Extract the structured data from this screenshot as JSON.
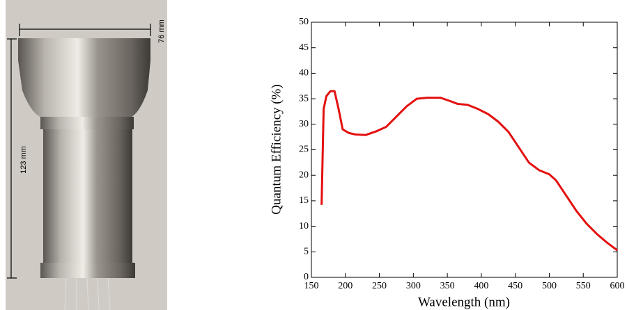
{
  "photo": {
    "labels": [
      "76 mm",
      "123 mm"
    ]
  },
  "chart_data": {
    "type": "line",
    "x_label": "Wavelength (nm)",
    "y_label": "Quantum Efficiency (%)",
    "x": [
      165,
      168,
      172,
      178,
      184,
      190,
      196,
      205,
      215,
      230,
      245,
      260,
      275,
      290,
      305,
      320,
      340,
      355,
      365,
      380,
      395,
      410,
      425,
      440,
      455,
      470,
      485,
      500,
      510,
      525,
      540,
      555,
      570,
      585,
      600
    ],
    "series": [
      {
        "color": "#e41010",
        "values": [
          14.2,
          33,
          35.5,
          36.5,
          36.5,
          33,
          29,
          28.3,
          28,
          27.9,
          28.6,
          29.5,
          31.5,
          33.5,
          35,
          35.2,
          35.2,
          34.5,
          34,
          33.8,
          33,
          32,
          30.5,
          28.5,
          25.5,
          22.5,
          21,
          20.2,
          19,
          16,
          13,
          10.5,
          8.5,
          6.8,
          5.3
        ]
      }
    ],
    "xlim": [
      150,
      600
    ],
    "xticks": [
      150,
      200,
      250,
      300,
      350,
      400,
      450,
      500,
      550,
      600
    ],
    "ylim": [
      0,
      50
    ],
    "yticks": [
      0,
      5,
      10,
      15,
      20,
      25,
      30,
      35,
      40,
      45,
      50
    ]
  }
}
